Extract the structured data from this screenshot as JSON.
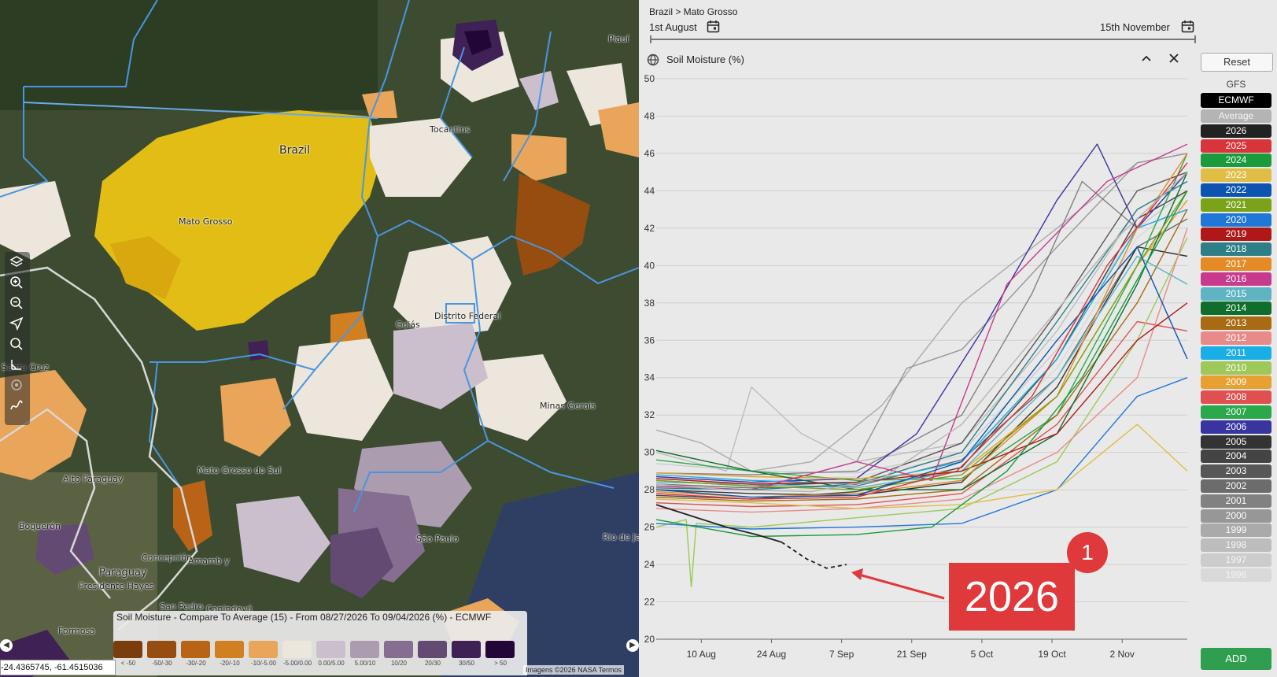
{
  "map": {
    "labels": {
      "piaui": "Piauí",
      "tocantins": "Tocantins",
      "brazil": "Brazil",
      "mato_grosso": "Mato Grosso",
      "goias": "Goiás",
      "distrito_federal": "Distrito Federal",
      "minas_gerais": "Minas Gerais",
      "santa_cruz": "Santa Cruz",
      "mato_grosso_do_sul": "Mato Grosso do Sul",
      "alto_paraguay": "Alto Paraguay",
      "boqueron": "Boquerón",
      "concepcion": "Concepción",
      "amambay": "Amamb y",
      "paraguay": "Paraguay",
      "presidente_hayes": "Presidente Hayes",
      "san_pedro": "San Pedro",
      "canindeyu": "Canindeyú",
      "formosa": "Formosa",
      "sao_paulo": "São Paulo",
      "rio_de_janeiro": "Rio de Ja"
    },
    "legend": {
      "title": "Soil Moisture - Compare To Average (15) - From 08/27/2026 To 09/04/2026 (%) - ECMWF",
      "items": [
        {
          "label": "< -50",
          "color": "#7a3e0c"
        },
        {
          "label": "-50/-30",
          "color": "#964d0f"
        },
        {
          "label": "-30/-20",
          "color": "#b86316"
        },
        {
          "label": "-20/-10",
          "color": "#d27f22"
        },
        {
          "label": "-10/-5.00",
          "color": "#e9a55a"
        },
        {
          "label": "-5.00/0.00",
          "color": "#ece6dc"
        },
        {
          "label": "0.00/5.00",
          "color": "#cbbfcd"
        },
        {
          "label": "5.00/10",
          "color": "#ab9cb0"
        },
        {
          "label": "10/20",
          "color": "#856e90"
        },
        {
          "label": "20/30",
          "color": "#634a73"
        },
        {
          "label": "30/50",
          "color": "#3f2155"
        },
        {
          "label": "> 50",
          "color": "#230638"
        }
      ]
    },
    "coordinates": "-24.4365745, -61.4515036",
    "attribution": "Imagens ©2026 NASA   Termos"
  },
  "panel": {
    "breadcrumb": "Brazil > Mato Grosso",
    "start_date": "1st August",
    "end_date": "15th November",
    "chart_title": "Soil Moisture (%)",
    "reset_label": "Reset",
    "source_gfs": "GFS",
    "source_ecmwf": "ECMWF",
    "add_label": "ADD",
    "callout_text": "2026",
    "badge_number": "1",
    "legend_items": [
      {
        "label": "Average",
        "color": "#b4b4b4"
      },
      {
        "label": "2026",
        "color": "#222222"
      },
      {
        "label": "2025",
        "color": "#d8343a"
      },
      {
        "label": "2024",
        "color": "#1a9b3c"
      },
      {
        "label": "2023",
        "color": "#e0bd45"
      },
      {
        "label": "2022",
        "color": "#0c54b0"
      },
      {
        "label": "2021",
        "color": "#7aa31a"
      },
      {
        "label": "2020",
        "color": "#1f77d8"
      },
      {
        "label": "2019",
        "color": "#b01818"
      },
      {
        "label": "2018",
        "color": "#2e7f88"
      },
      {
        "label": "2017",
        "color": "#e58a24"
      },
      {
        "label": "2016",
        "color": "#c83a8e"
      },
      {
        "label": "2015",
        "color": "#5fb4c4"
      },
      {
        "label": "2014",
        "color": "#0f6e2c"
      },
      {
        "label": "2013",
        "color": "#a86a12"
      },
      {
        "label": "2012",
        "color": "#e98a8a"
      },
      {
        "label": "2011",
        "color": "#1aaee6"
      },
      {
        "label": "2010",
        "color": "#9ec85a"
      },
      {
        "label": "2009",
        "color": "#e8a030"
      },
      {
        "label": "2008",
        "color": "#e05050"
      },
      {
        "label": "2007",
        "color": "#2aa84a"
      },
      {
        "label": "2006",
        "color": "#3a34a0"
      },
      {
        "label": "2005",
        "color": "#333333"
      },
      {
        "label": "2004",
        "color": "#444444"
      },
      {
        "label": "2003",
        "color": "#575757"
      },
      {
        "label": "2002",
        "color": "#6c6c6c"
      },
      {
        "label": "2001",
        "color": "#818181"
      },
      {
        "label": "2000",
        "color": "#979797"
      },
      {
        "label": "1999",
        "color": "#aaaaaa"
      },
      {
        "label": "1998",
        "color": "#bdbdbd"
      },
      {
        "label": "1997",
        "color": "#cccccc"
      },
      {
        "label": "1996",
        "color": "#d9d9d9"
      }
    ]
  },
  "chart_data": {
    "type": "line",
    "title": "Soil Moisture (%)",
    "ylim": [
      20,
      50
    ],
    "y_ticks": [
      20,
      22,
      24,
      26,
      28,
      30,
      32,
      34,
      36,
      38,
      40,
      42,
      44,
      46,
      48,
      50
    ],
    "x_range": [
      "2026-08-01",
      "2026-11-15"
    ],
    "x_ticks": [
      {
        "date": "2026-08-10",
        "label": "10 Aug"
      },
      {
        "date": "2026-08-24",
        "label": "24 Aug"
      },
      {
        "date": "2026-09-07",
        "label": "7 Sep"
      },
      {
        "date": "2026-09-21",
        "label": "21 Sep"
      },
      {
        "date": "2026-10-05",
        "label": "5 Oct"
      },
      {
        "date": "2026-10-19",
        "label": "19 Oct"
      },
      {
        "date": "2026-11-02",
        "label": "2 Nov"
      }
    ],
    "grid": true,
    "legend": "right",
    "series": [
      {
        "name": "2026",
        "color": "#222222",
        "style": "solid",
        "x": [
          "2026-08-01",
          "2026-08-08",
          "2026-08-15",
          "2026-08-21",
          "2026-08-26"
        ],
        "y": [
          27.2,
          26.6,
          26.0,
          25.6,
          25.2
        ]
      },
      {
        "name": "2026",
        "color": "#222222",
        "style": "dashed",
        "x": [
          "2026-08-26",
          "2026-08-31",
          "2026-09-04",
          "2026-09-08"
        ],
        "y": [
          25.2,
          24.3,
          23.8,
          24.0
        ]
      },
      {
        "name": "Average",
        "color": "#b4b4b4",
        "style": "solid",
        "x": [
          "2026-08-01",
          "2026-08-15",
          "2026-09-01",
          "2026-09-15",
          "2026-10-01",
          "2026-10-15",
          "2026-11-01",
          "2026-11-15"
        ],
        "y": [
          28.3,
          28.0,
          27.9,
          28.6,
          31.5,
          36.0,
          41.5,
          45.0
        ]
      },
      {
        "name": "2025",
        "color": "#d8343a",
        "style": "solid",
        "x": [
          "2026-08-01",
          "2026-08-20",
          "2026-09-10",
          "2026-09-30",
          "2026-10-15",
          "2026-10-30",
          "2026-11-15"
        ],
        "y": [
          27.8,
          27.5,
          27.6,
          29.0,
          33.0,
          40.0,
          45.5
        ]
      },
      {
        "name": "2024",
        "color": "#1a9b3c",
        "style": "solid",
        "x": [
          "2026-08-01",
          "2026-08-20",
          "2026-09-10",
          "2026-09-25",
          "2026-10-10",
          "2026-10-25",
          "2026-11-15"
        ],
        "y": [
          26.4,
          25.5,
          25.6,
          26.0,
          29.0,
          34.0,
          44.0
        ]
      },
      {
        "name": "2023",
        "color": "#e0bd45",
        "style": "solid",
        "x": [
          "2026-08-01",
          "2026-08-20",
          "2026-09-10",
          "2026-10-01",
          "2026-10-20",
          "2026-11-05",
          "2026-11-15"
        ],
        "y": [
          27.5,
          27.3,
          27.0,
          27.2,
          28.0,
          31.5,
          29.0
        ]
      },
      {
        "name": "2022",
        "color": "#0c54b0",
        "style": "solid",
        "x": [
          "2026-08-01",
          "2026-08-20",
          "2026-09-10",
          "2026-10-01",
          "2026-10-20",
          "2026-11-05",
          "2026-11-15"
        ],
        "y": [
          28.0,
          27.6,
          27.7,
          29.5,
          36.0,
          41.0,
          35.0
        ]
      },
      {
        "name": "2021",
        "color": "#7aa31a",
        "style": "solid",
        "x": [
          "2026-08-01",
          "2026-08-20",
          "2026-09-10",
          "2026-10-01",
          "2026-10-20",
          "2026-11-05",
          "2026-11-15"
        ],
        "y": [
          28.5,
          28.2,
          28.0,
          28.8,
          33.0,
          40.0,
          44.0
        ]
      },
      {
        "name": "2020",
        "color": "#1f77d8",
        "style": "solid",
        "x": [
          "2026-08-01",
          "2026-08-20",
          "2026-09-10",
          "2026-10-01",
          "2026-10-20",
          "2026-11-05",
          "2026-11-15"
        ],
        "y": [
          26.2,
          25.9,
          26.0,
          26.2,
          28.0,
          33.0,
          34.0
        ]
      },
      {
        "name": "2019",
        "color": "#b01818",
        "style": "solid",
        "x": [
          "2026-08-01",
          "2026-08-20",
          "2026-09-10",
          "2026-10-01",
          "2026-10-20",
          "2026-11-05",
          "2026-11-15"
        ],
        "y": [
          28.6,
          28.3,
          28.4,
          29.0,
          31.0,
          36.0,
          38.0
        ]
      },
      {
        "name": "2018",
        "color": "#2e7f88",
        "style": "solid",
        "x": [
          "2026-08-01",
          "2026-08-20",
          "2026-09-10",
          "2026-10-01",
          "2026-10-20",
          "2026-11-05",
          "2026-11-15"
        ],
        "y": [
          28.1,
          28.0,
          28.3,
          30.0,
          37.0,
          43.0,
          44.5
        ]
      },
      {
        "name": "2017",
        "color": "#e58a24",
        "style": "solid",
        "x": [
          "2026-08-01",
          "2026-08-20",
          "2026-09-10",
          "2026-10-01",
          "2026-10-20",
          "2026-11-05",
          "2026-11-15"
        ],
        "y": [
          27.9,
          27.6,
          27.8,
          28.5,
          33.0,
          42.0,
          46.0
        ]
      },
      {
        "name": "2016",
        "color": "#c83a8e",
        "style": "solid",
        "x": [
          "2026-08-01",
          "2026-08-20",
          "2026-09-10",
          "2026-09-25",
          "2026-10-10",
          "2026-10-30",
          "2026-11-15"
        ],
        "y": [
          28.2,
          28.0,
          29.5,
          28.5,
          39.0,
          44.5,
          46.5
        ]
      },
      {
        "name": "2015",
        "color": "#5fb4c4",
        "style": "solid",
        "x": [
          "2026-08-01",
          "2026-08-20",
          "2026-09-10",
          "2026-10-01",
          "2026-10-20",
          "2026-11-05",
          "2026-11-15"
        ],
        "y": [
          28.4,
          28.3,
          28.1,
          29.0,
          34.0,
          40.5,
          39.0
        ]
      },
      {
        "name": "2014",
        "color": "#0f6e2c",
        "style": "solid",
        "x": [
          "2026-08-01",
          "2026-08-20",
          "2026-09-10",
          "2026-10-01",
          "2026-10-20",
          "2026-11-05",
          "2026-11-15"
        ],
        "y": [
          30.1,
          29.0,
          28.0,
          28.0,
          31.0,
          39.0,
          45.0
        ]
      },
      {
        "name": "2013",
        "color": "#a86a12",
        "style": "solid",
        "x": [
          "2026-08-01",
          "2026-08-20",
          "2026-09-10",
          "2026-10-01",
          "2026-10-20",
          "2026-11-05",
          "2026-11-15"
        ],
        "y": [
          27.6,
          27.4,
          27.5,
          28.0,
          32.0,
          38.0,
          43.0
        ]
      },
      {
        "name": "2012",
        "color": "#e98a8a",
        "style": "solid",
        "x": [
          "2026-08-01",
          "2026-08-20",
          "2026-09-10",
          "2026-10-01",
          "2026-10-20",
          "2026-11-05",
          "2026-11-15"
        ],
        "y": [
          27.0,
          26.8,
          27.0,
          27.5,
          30.0,
          34.0,
          42.0
        ]
      },
      {
        "name": "2011",
        "color": "#1aaee6",
        "style": "solid",
        "x": [
          "2026-08-01",
          "2026-08-20",
          "2026-09-10",
          "2026-10-01",
          "2026-10-20",
          "2026-11-05",
          "2026-11-15"
        ],
        "y": [
          28.8,
          28.5,
          28.3,
          29.5,
          35.0,
          42.0,
          43.0
        ]
      },
      {
        "name": "2010",
        "color": "#9ec85a",
        "style": "solid",
        "x": [
          "2026-08-01",
          "2026-08-07",
          "2026-08-08",
          "2026-08-09",
          "2026-08-20",
          "2026-09-10",
          "2026-10-01",
          "2026-10-20",
          "2026-11-05",
          "2026-11-15"
        ],
        "y": [
          26.0,
          26.4,
          22.8,
          26.2,
          26.0,
          26.5,
          27.0,
          29.5,
          36.0,
          41.5
        ]
      },
      {
        "name": "2009",
        "color": "#e8a030",
        "style": "solid",
        "x": [
          "2026-08-01",
          "2026-08-20",
          "2026-09-10",
          "2026-10-01",
          "2026-10-20",
          "2026-11-05",
          "2026-11-15"
        ],
        "y": [
          28.9,
          28.7,
          28.6,
          29.0,
          33.0,
          40.0,
          43.5
        ]
      },
      {
        "name": "2008",
        "color": "#e05050",
        "style": "solid",
        "x": [
          "2026-08-01",
          "2026-08-20",
          "2026-09-10",
          "2026-10-01",
          "2026-10-20",
          "2026-11-05",
          "2026-11-15"
        ],
        "y": [
          27.3,
          27.1,
          27.2,
          27.8,
          31.5,
          37.0,
          36.5
        ]
      },
      {
        "name": "2007",
        "color": "#2aa84a",
        "style": "solid",
        "x": [
          "2026-08-01",
          "2026-08-20",
          "2026-09-10",
          "2026-10-01",
          "2026-10-20",
          "2026-11-05",
          "2026-11-15"
        ],
        "y": [
          29.6,
          29.0,
          28.5,
          28.6,
          32.0,
          40.0,
          46.0
        ]
      },
      {
        "name": "2006",
        "color": "#3a34a0",
        "style": "solid",
        "x": [
          "2026-08-01",
          "2026-08-20",
          "2026-09-10",
          "2026-09-22",
          "2026-10-05",
          "2026-10-20",
          "2026-10-28",
          "2026-11-05",
          "2026-11-15"
        ],
        "y": [
          28.7,
          28.4,
          28.6,
          31.0,
          36.5,
          43.5,
          46.5,
          42.0,
          45.0
        ]
      },
      {
        "name": "2005",
        "color": "#333333",
        "style": "solid",
        "x": [
          "2026-08-01",
          "2026-08-20",
          "2026-09-10",
          "2026-10-01",
          "2026-10-20",
          "2026-11-05",
          "2026-11-15"
        ],
        "y": [
          28.0,
          27.8,
          27.7,
          28.4,
          33.5,
          41.0,
          40.5
        ]
      },
      {
        "name": "2004",
        "color": "#444444",
        "style": "solid",
        "x": [
          "2026-08-01",
          "2026-08-20",
          "2026-09-10",
          "2026-10-01",
          "2026-10-20",
          "2026-11-05",
          "2026-11-15"
        ],
        "y": [
          27.7,
          27.5,
          27.9,
          29.2,
          35.0,
          42.5,
          44.0
        ]
      },
      {
        "name": "2003",
        "color": "#575757",
        "style": "solid",
        "x": [
          "2026-08-01",
          "2026-08-20",
          "2026-09-10",
          "2026-10-01",
          "2026-10-20",
          "2026-11-05",
          "2026-11-15"
        ],
        "y": [
          28.5,
          28.2,
          28.4,
          30.5,
          37.5,
          44.0,
          45.0
        ]
      },
      {
        "name": "2002",
        "color": "#6c6c6c",
        "style": "solid",
        "x": [
          "2026-08-01",
          "2026-08-20",
          "2026-09-10",
          "2026-10-01",
          "2026-10-20",
          "2026-11-05",
          "2026-11-15"
        ],
        "y": [
          28.3,
          28.1,
          28.2,
          29.6,
          34.0,
          41.0,
          42.5
        ]
      },
      {
        "name": "2001",
        "color": "#818181",
        "style": "solid",
        "x": [
          "2026-08-01",
          "2026-08-20",
          "2026-09-10",
          "2026-10-01",
          "2026-10-15",
          "2026-10-25",
          "2026-11-05",
          "2026-11-15"
        ],
        "y": [
          28.9,
          28.8,
          29.0,
          32.0,
          38.5,
          44.5,
          42.0,
          43.0
        ]
      },
      {
        "name": "2000",
        "color": "#979797",
        "style": "solid",
        "x": [
          "2026-08-01",
          "2026-08-20",
          "2026-09-10",
          "2026-09-20",
          "2026-10-01",
          "2026-10-20",
          "2026-11-05",
          "2026-11-15"
        ],
        "y": [
          28.2,
          28.0,
          29.5,
          34.5,
          35.5,
          41.0,
          45.5,
          46.0
        ]
      },
      {
        "name": "1999",
        "color": "#aaaaaa",
        "style": "solid",
        "x": [
          "2026-08-01",
          "2026-08-10",
          "2026-08-20",
          "2026-09-01",
          "2026-09-15",
          "2026-10-01",
          "2026-10-20",
          "2026-11-05",
          "2026-11-15"
        ],
        "y": [
          31.2,
          30.5,
          29.0,
          29.5,
          32.5,
          38.0,
          42.0,
          45.5,
          46.0
        ]
      },
      {
        "name": "1998",
        "color": "#bdbdbd",
        "style": "solid",
        "x": [
          "2026-08-01",
          "2026-08-15",
          "2026-08-20",
          "2026-08-30",
          "2026-09-10",
          "2026-10-01",
          "2026-10-20",
          "2026-11-05",
          "2026-11-15"
        ],
        "y": [
          30.0,
          29.0,
          33.5,
          31.0,
          29.5,
          30.5,
          36.5,
          43.0,
          44.5
        ]
      },
      {
        "name": "1997",
        "color": "#cccccc",
        "style": "solid",
        "x": [
          "2026-08-01",
          "2026-08-20",
          "2026-09-10",
          "2026-10-01",
          "2026-10-20",
          "2026-11-05",
          "2026-11-15"
        ],
        "y": [
          29.4,
          29.0,
          28.9,
          30.0,
          35.5,
          42.0,
          44.0
        ]
      },
      {
        "name": "1996",
        "color": "#d9d9d9",
        "style": "solid",
        "x": [
          "2026-08-01",
          "2026-08-20",
          "2026-09-10",
          "2026-10-01",
          "2026-10-20",
          "2026-11-05",
          "2026-11-15"
        ],
        "y": [
          28.6,
          28.5,
          28.7,
          29.8,
          34.5,
          41.5,
          43.5
        ]
      }
    ]
  }
}
